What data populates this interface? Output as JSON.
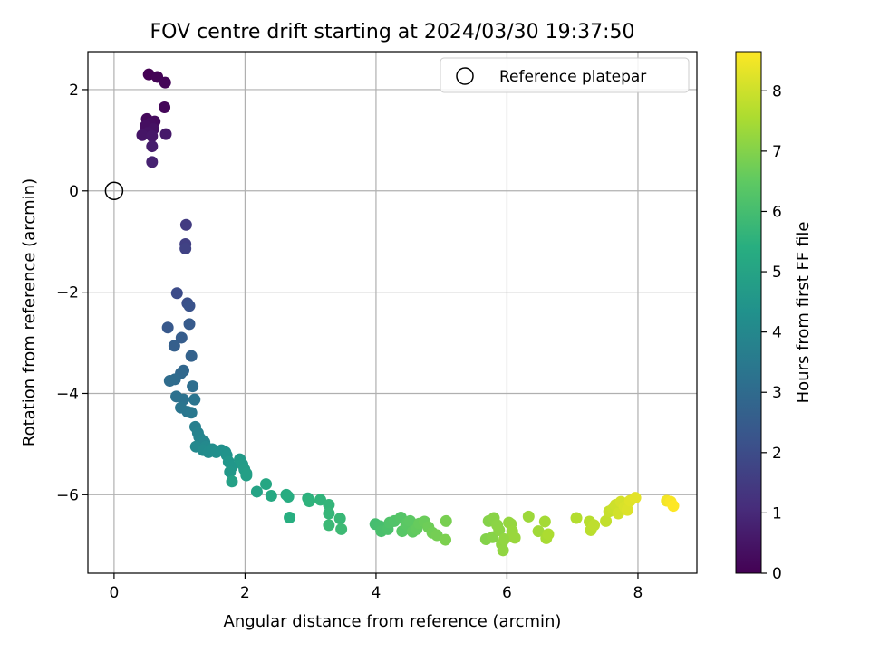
{
  "chart_data": {
    "type": "scatter",
    "title": "FOV centre drift starting at 2024/03/30 19:37:50",
    "xlabel": "Angular distance from reference (arcmin)",
    "ylabel": "Rotation from reference (arcmin)",
    "xlim": [
      -0.4,
      8.9
    ],
    "ylim": [
      -7.55,
      2.75
    ],
    "xticks": [
      0,
      2,
      4,
      6,
      8
    ],
    "yticks": [
      -6,
      -4,
      -2,
      0,
      2
    ],
    "grid": true,
    "legend": {
      "position": "top-right",
      "entries": [
        "Reference platepar"
      ]
    },
    "reference_point": {
      "x": 0,
      "y": 0
    },
    "colorbar": {
      "label": "Hours from first FF file",
      "range": [
        0,
        8.65
      ],
      "ticks": [
        0,
        1,
        2,
        3,
        4,
        5,
        6,
        7,
        8
      ],
      "colormap": "viridis"
    },
    "points": [
      {
        "x": 0.53,
        "y": 2.3,
        "t": 0.0
      },
      {
        "x": 0.66,
        "y": 2.25,
        "t": 0.05
      },
      {
        "x": 0.78,
        "y": 2.14,
        "t": 0.1
      },
      {
        "x": 0.77,
        "y": 1.65,
        "t": 0.15
      },
      {
        "x": 0.5,
        "y": 1.42,
        "t": 0.2
      },
      {
        "x": 0.62,
        "y": 1.37,
        "t": 0.25
      },
      {
        "x": 0.55,
        "y": 1.33,
        "t": 0.3
      },
      {
        "x": 0.48,
        "y": 1.28,
        "t": 0.35
      },
      {
        "x": 0.6,
        "y": 1.22,
        "t": 0.4
      },
      {
        "x": 0.52,
        "y": 1.15,
        "t": 0.45
      },
      {
        "x": 0.43,
        "y": 1.1,
        "t": 0.5
      },
      {
        "x": 0.58,
        "y": 1.08,
        "t": 0.55
      },
      {
        "x": 0.79,
        "y": 1.12,
        "t": 0.6
      },
      {
        "x": 0.58,
        "y": 0.88,
        "t": 0.7
      },
      {
        "x": 0.58,
        "y": 0.57,
        "t": 0.8
      },
      {
        "x": 1.1,
        "y": -0.67,
        "t": 1.5
      },
      {
        "x": 1.09,
        "y": -1.05,
        "t": 1.6
      },
      {
        "x": 1.09,
        "y": -1.14,
        "t": 1.7
      },
      {
        "x": 0.96,
        "y": -2.02,
        "t": 2.0
      },
      {
        "x": 1.12,
        "y": -2.22,
        "t": 2.1
      },
      {
        "x": 1.15,
        "y": -2.27,
        "t": 2.2
      },
      {
        "x": 0.82,
        "y": -2.7,
        "t": 2.4
      },
      {
        "x": 1.15,
        "y": -2.63,
        "t": 2.45
      },
      {
        "x": 1.03,
        "y": -2.9,
        "t": 2.55
      },
      {
        "x": 0.92,
        "y": -3.06,
        "t": 2.6
      },
      {
        "x": 1.18,
        "y": -3.26,
        "t": 2.7
      },
      {
        "x": 1.06,
        "y": -3.55,
        "t": 2.85
      },
      {
        "x": 1.02,
        "y": -3.6,
        "t": 2.9
      },
      {
        "x": 0.93,
        "y": -3.72,
        "t": 3.0
      },
      {
        "x": 0.85,
        "y": -3.75,
        "t": 3.05
      },
      {
        "x": 1.2,
        "y": -3.86,
        "t": 3.1
      },
      {
        "x": 0.95,
        "y": -4.06,
        "t": 3.2
      },
      {
        "x": 1.06,
        "y": -4.12,
        "t": 3.25
      },
      {
        "x": 1.23,
        "y": -4.12,
        "t": 3.3
      },
      {
        "x": 1.02,
        "y": -4.28,
        "t": 3.35
      },
      {
        "x": 1.12,
        "y": -4.36,
        "t": 3.4
      },
      {
        "x": 1.18,
        "y": -4.38,
        "t": 3.45
      },
      {
        "x": 1.24,
        "y": -4.66,
        "t": 3.7
      },
      {
        "x": 1.28,
        "y": -4.78,
        "t": 3.8
      },
      {
        "x": 1.3,
        "y": -4.86,
        "t": 3.85
      },
      {
        "x": 1.34,
        "y": -4.92,
        "t": 3.9
      },
      {
        "x": 1.38,
        "y": -4.96,
        "t": 3.95
      },
      {
        "x": 1.25,
        "y": -5.05,
        "t": 4.0
      },
      {
        "x": 1.4,
        "y": -5.05,
        "t": 4.05
      },
      {
        "x": 1.36,
        "y": -5.12,
        "t": 4.1
      },
      {
        "x": 1.44,
        "y": -5.16,
        "t": 4.15
      },
      {
        "x": 1.5,
        "y": -5.1,
        "t": 4.2
      },
      {
        "x": 1.56,
        "y": -5.16,
        "t": 4.25
      },
      {
        "x": 1.64,
        "y": -5.12,
        "t": 4.3
      },
      {
        "x": 1.7,
        "y": -5.16,
        "t": 4.35
      },
      {
        "x": 1.72,
        "y": -5.22,
        "t": 4.4
      },
      {
        "x": 1.75,
        "y": -5.35,
        "t": 4.5
      },
      {
        "x": 1.8,
        "y": -5.45,
        "t": 4.55
      },
      {
        "x": 1.77,
        "y": -5.55,
        "t": 4.6
      },
      {
        "x": 1.92,
        "y": -5.3,
        "t": 4.65
      },
      {
        "x": 1.96,
        "y": -5.4,
        "t": 4.7
      },
      {
        "x": 1.99,
        "y": -5.5,
        "t": 4.75
      },
      {
        "x": 2.02,
        "y": -5.58,
        "t": 4.8
      },
      {
        "x": 2.02,
        "y": -5.62,
        "t": 4.85
      },
      {
        "x": 1.8,
        "y": -5.74,
        "t": 4.9
      },
      {
        "x": 2.18,
        "y": -5.94,
        "t": 5.0
      },
      {
        "x": 2.32,
        "y": -5.79,
        "t": 5.1
      },
      {
        "x": 2.4,
        "y": -6.02,
        "t": 5.2
      },
      {
        "x": 2.63,
        "y": -6.0,
        "t": 5.3
      },
      {
        "x": 2.66,
        "y": -6.04,
        "t": 5.35
      },
      {
        "x": 2.68,
        "y": -6.45,
        "t": 5.4
      },
      {
        "x": 2.96,
        "y": -6.07,
        "t": 5.5
      },
      {
        "x": 2.98,
        "y": -6.13,
        "t": 5.55
      },
      {
        "x": 3.15,
        "y": -6.1,
        "t": 5.6
      },
      {
        "x": 3.28,
        "y": -6.2,
        "t": 5.65
      },
      {
        "x": 3.28,
        "y": -6.37,
        "t": 5.7
      },
      {
        "x": 3.45,
        "y": -6.47,
        "t": 5.75
      },
      {
        "x": 3.28,
        "y": -6.6,
        "t": 5.8
      },
      {
        "x": 3.47,
        "y": -6.68,
        "t": 5.85
      },
      {
        "x": 3.99,
        "y": -6.58,
        "t": 6.0
      },
      {
        "x": 4.06,
        "y": -6.62,
        "t": 6.05
      },
      {
        "x": 4.08,
        "y": -6.72,
        "t": 6.1
      },
      {
        "x": 4.18,
        "y": -6.68,
        "t": 6.15
      },
      {
        "x": 4.21,
        "y": -6.55,
        "t": 6.2
      },
      {
        "x": 4.28,
        "y": -6.52,
        "t": 6.25
      },
      {
        "x": 4.38,
        "y": -6.45,
        "t": 6.3
      },
      {
        "x": 4.4,
        "y": -6.72,
        "t": 6.35
      },
      {
        "x": 4.46,
        "y": -6.58,
        "t": 6.4
      },
      {
        "x": 4.52,
        "y": -6.52,
        "t": 6.45
      },
      {
        "x": 4.56,
        "y": -6.73,
        "t": 6.5
      },
      {
        "x": 4.62,
        "y": -6.68,
        "t": 6.55
      },
      {
        "x": 4.66,
        "y": -6.57,
        "t": 6.6
      },
      {
        "x": 4.74,
        "y": -6.53,
        "t": 6.65
      },
      {
        "x": 4.8,
        "y": -6.64,
        "t": 6.7
      },
      {
        "x": 4.86,
        "y": -6.75,
        "t": 6.75
      },
      {
        "x": 4.93,
        "y": -6.8,
        "t": 6.8
      },
      {
        "x": 5.07,
        "y": -6.52,
        "t": 6.85
      },
      {
        "x": 5.06,
        "y": -6.89,
        "t": 6.9
      },
      {
        "x": 5.68,
        "y": -6.88,
        "t": 7.0
      },
      {
        "x": 5.72,
        "y": -6.52,
        "t": 7.02
      },
      {
        "x": 5.78,
        "y": -6.84,
        "t": 7.05
      },
      {
        "x": 5.8,
        "y": -6.46,
        "t": 7.08
      },
      {
        "x": 5.85,
        "y": -6.6,
        "t": 7.1
      },
      {
        "x": 5.88,
        "y": -6.7,
        "t": 7.12
      },
      {
        "x": 5.92,
        "y": -6.98,
        "t": 7.15
      },
      {
        "x": 5.94,
        "y": -7.1,
        "t": 7.18
      },
      {
        "x": 5.96,
        "y": -6.88,
        "t": 7.2
      },
      {
        "x": 6.03,
        "y": -6.55,
        "t": 7.22
      },
      {
        "x": 6.06,
        "y": -6.58,
        "t": 7.25
      },
      {
        "x": 6.08,
        "y": -6.72,
        "t": 7.28
      },
      {
        "x": 6.12,
        "y": -6.85,
        "t": 7.3
      },
      {
        "x": 6.33,
        "y": -6.43,
        "t": 7.35
      },
      {
        "x": 6.48,
        "y": -6.72,
        "t": 7.4
      },
      {
        "x": 6.58,
        "y": -6.53,
        "t": 7.45
      },
      {
        "x": 6.6,
        "y": -6.86,
        "t": 7.5
      },
      {
        "x": 6.63,
        "y": -6.78,
        "t": 7.55
      },
      {
        "x": 7.06,
        "y": -6.46,
        "t": 7.65
      },
      {
        "x": 7.26,
        "y": -6.53,
        "t": 7.7
      },
      {
        "x": 7.28,
        "y": -6.7,
        "t": 7.75
      },
      {
        "x": 7.33,
        "y": -6.6,
        "t": 7.8
      },
      {
        "x": 7.51,
        "y": -6.52,
        "t": 7.85
      },
      {
        "x": 7.56,
        "y": -6.33,
        "t": 7.9
      },
      {
        "x": 7.62,
        "y": -6.28,
        "t": 7.95
      },
      {
        "x": 7.66,
        "y": -6.2,
        "t": 8.0
      },
      {
        "x": 7.7,
        "y": -6.37,
        "t": 8.05
      },
      {
        "x": 7.74,
        "y": -6.14,
        "t": 8.1
      },
      {
        "x": 7.8,
        "y": -6.24,
        "t": 8.15
      },
      {
        "x": 7.84,
        "y": -6.3,
        "t": 8.2
      },
      {
        "x": 7.88,
        "y": -6.12,
        "t": 8.25
      },
      {
        "x": 7.96,
        "y": -6.06,
        "t": 8.3
      },
      {
        "x": 8.44,
        "y": -6.12,
        "t": 8.5
      },
      {
        "x": 8.5,
        "y": -6.14,
        "t": 8.6
      },
      {
        "x": 8.54,
        "y": -6.22,
        "t": 8.65
      }
    ]
  }
}
